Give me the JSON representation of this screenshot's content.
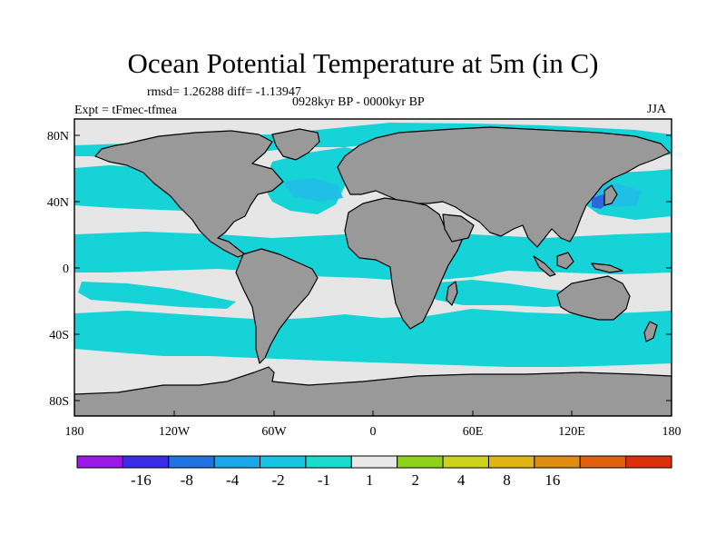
{
  "title": "Ocean Potential Temperature at 5m (in C)",
  "stats": "rmsd= 1.26288 diff= -1.13947",
  "period": "0928kyr BP - 0000kyr BP",
  "experiment": "Expt = tFmec-tfmea",
  "season": "JJA",
  "lat_ticks": [
    "80N",
    "40N",
    "0",
    "40S",
    "80S"
  ],
  "lon_ticks": [
    "180",
    "120W",
    "60W",
    "0",
    "60E",
    "120E",
    "180"
  ],
  "colorbar": {
    "labels": [
      "-16",
      "-8",
      "-4",
      "-2",
      "-1",
      "1",
      "2",
      "4",
      "8",
      "16"
    ],
    "colors": [
      "#9a19e6",
      "#3c2be6",
      "#1f73e0",
      "#1aa6ea",
      "#17c5e3",
      "#19dccc",
      "#e8e8e8",
      "#8fd21c",
      "#cdd21a",
      "#e0b413",
      "#e08c11",
      "#e0600e",
      "#dc300a"
    ]
  },
  "map_colors": {
    "ocean_near_zero": "#e6e6e6",
    "ocean_cool_light": "#16d3d8",
    "ocean_cool": "#1fbfe6",
    "ocean_cold": "#2a68dc",
    "land": "#999999"
  }
}
